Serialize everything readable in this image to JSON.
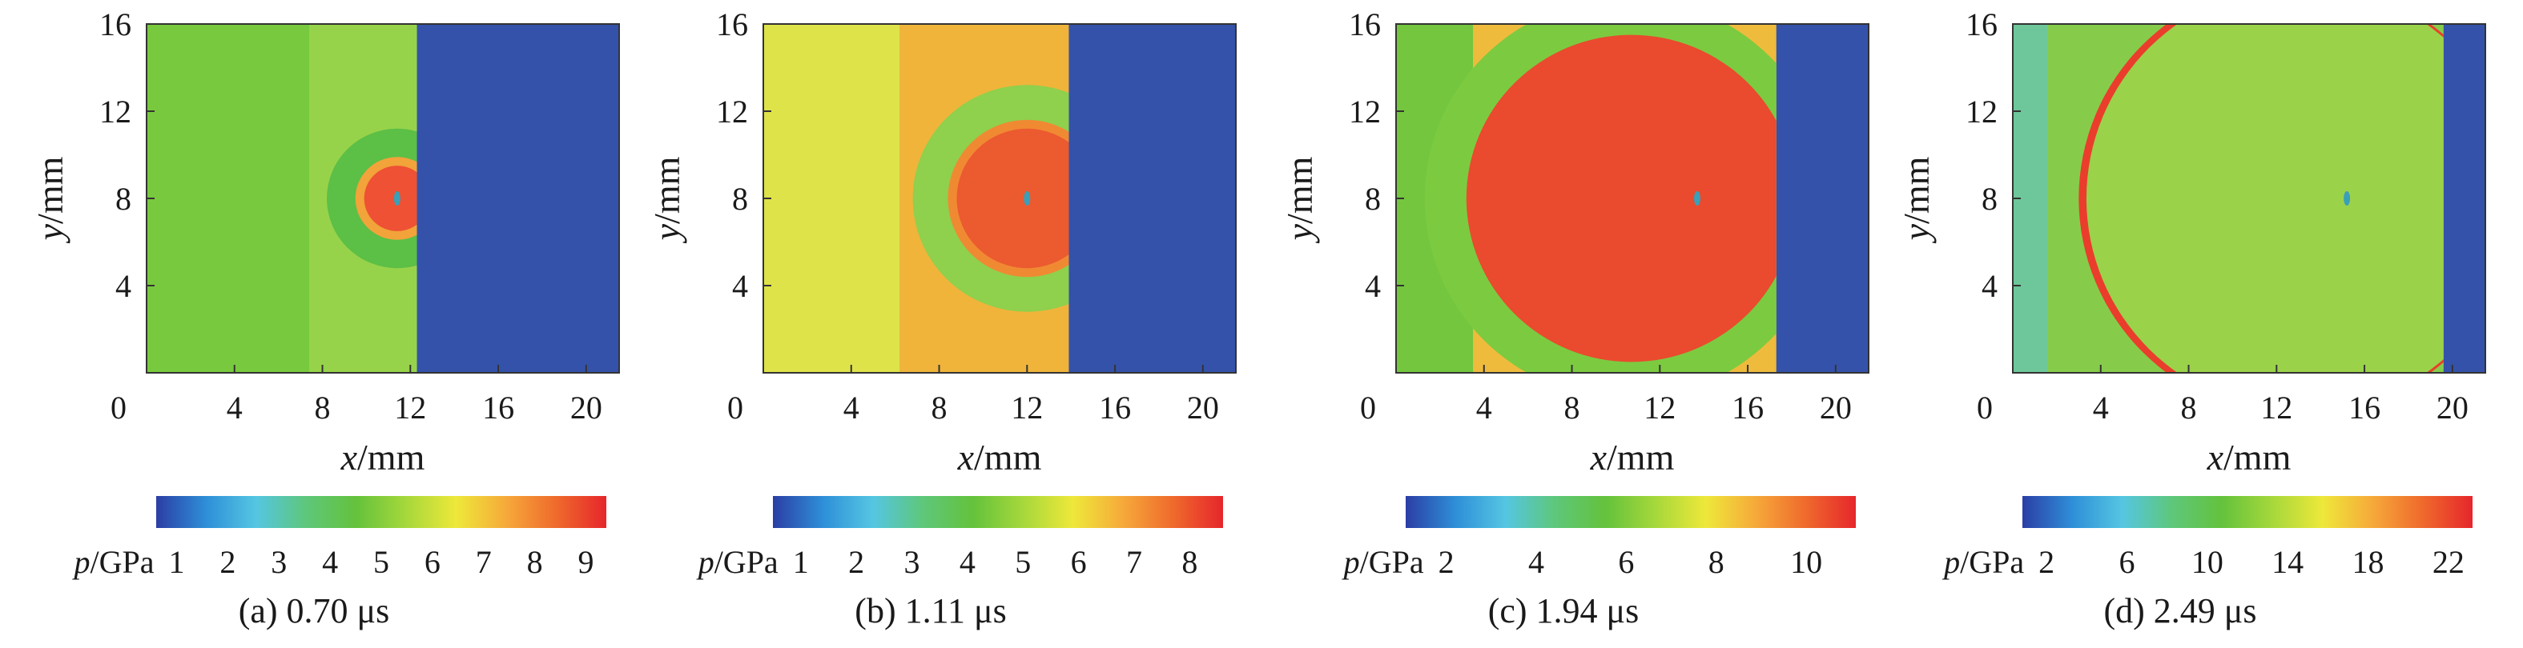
{
  "chart_data": [
    {
      "type": "heatmap",
      "caption": "(a) 0.70 μs",
      "xlabel": "x/mm",
      "ylabel": "y/mm",
      "xticks": [
        "0",
        "4",
        "8",
        "12",
        "16",
        "20"
      ],
      "yticks": [
        "4",
        "8",
        "12",
        "16"
      ],
      "xlim": [
        0,
        21.5
      ],
      "ylim": [
        0,
        16
      ],
      "colorbar": {
        "label": "p/GPa",
        "ticks": [
          "1",
          "2",
          "3",
          "4",
          "5",
          "6",
          "7",
          "8",
          "9"
        ],
        "range": [
          0.6,
          9.4
        ]
      },
      "regions": [
        {
          "kind": "band",
          "x": [
            0,
            7.4
          ],
          "color": "#78c93e"
        },
        {
          "kind": "band",
          "x": [
            7.4,
            12.3
          ],
          "color": "#97d34a"
        },
        {
          "kind": "band",
          "x": [
            12.3,
            21.5
          ],
          "color": "#3452a9"
        },
        {
          "kind": "circle",
          "cx": 11.4,
          "cy": 8,
          "r": 3.2,
          "color": "#5cbf46",
          "clip_x": 12.3
        },
        {
          "kind": "circle",
          "cx": 11.4,
          "cy": 8,
          "r": 1.9,
          "color": "#f2a33a",
          "clip_x": 12.3
        },
        {
          "kind": "circle",
          "cx": 11.4,
          "cy": 8,
          "r": 1.5,
          "color": "#ee5133",
          "clip_x": 12.3
        }
      ],
      "probe": {
        "x": 11.4,
        "y": 8
      }
    },
    {
      "type": "heatmap",
      "caption": "(b) 1.11 μs",
      "xlabel": "x/mm",
      "ylabel": "y/mm",
      "xticks": [
        "0",
        "4",
        "8",
        "12",
        "16",
        "20"
      ],
      "yticks": [
        "4",
        "8",
        "12",
        "16"
      ],
      "xlim": [
        0,
        21.5
      ],
      "ylim": [
        0,
        16
      ],
      "colorbar": {
        "label": "p/GPa",
        "ticks": [
          "1",
          "2",
          "3",
          "4",
          "5",
          "6",
          "7",
          "8"
        ],
        "range": [
          0.5,
          8.6
        ]
      },
      "regions": [
        {
          "kind": "band",
          "x": [
            0,
            6.2
          ],
          "color": "#dfe34a"
        },
        {
          "kind": "band",
          "x": [
            6.2,
            13.9
          ],
          "color": "#f0b43a"
        },
        {
          "kind": "band",
          "x": [
            13.9,
            21.5
          ],
          "color": "#3452a9"
        },
        {
          "kind": "circle",
          "cx": 12,
          "cy": 8,
          "r": 5.2,
          "color": "#8fd04c",
          "clip_x": 13.9
        },
        {
          "kind": "circle",
          "cx": 12,
          "cy": 8,
          "r": 3.6,
          "color": "#f08a32",
          "clip_x": 13.9
        },
        {
          "kind": "circle",
          "cx": 12,
          "cy": 8,
          "r": 3.2,
          "color": "#ec5a30",
          "clip_x": 13.9
        }
      ],
      "probe": {
        "x": 12,
        "y": 8
      }
    },
    {
      "type": "heatmap",
      "caption": "(c) 1.94 μs",
      "xlabel": "x/mm",
      "ylabel": "y/mm",
      "xticks": [
        "0",
        "4",
        "8",
        "12",
        "16",
        "20"
      ],
      "yticks": [
        "4",
        "8",
        "12",
        "16"
      ],
      "xlim": [
        0,
        21.5
      ],
      "ylim": [
        0,
        16
      ],
      "colorbar": {
        "label": "p/GPa",
        "ticks": [
          "2",
          "4",
          "6",
          "8",
          "10"
        ],
        "range": [
          1.1,
          11.1
        ]
      },
      "regions": [
        {
          "kind": "band",
          "x": [
            0,
            3.5
          ],
          "color": "#73c63e"
        },
        {
          "kind": "band",
          "x": [
            3.5,
            17.3
          ],
          "color": "#efbb3c"
        },
        {
          "kind": "band",
          "x": [
            17.3,
            21.5
          ],
          "color": "#3452a9"
        },
        {
          "kind": "circle",
          "cx": 10.5,
          "cy": 8,
          "r": 9.2,
          "color": "#7cca40",
          "clip_x": 17.3
        },
        {
          "kind": "circle",
          "cx": 10.7,
          "cy": 8,
          "r": 7.5,
          "color": "#ea4a2e",
          "clip_x": 17.3
        }
      ],
      "probe": {
        "x": 13.7,
        "y": 8
      }
    },
    {
      "type": "heatmap",
      "caption": "(d) 2.49 μs",
      "xlabel": "x/mm",
      "ylabel": "y/mm",
      "xticks": [
        "0",
        "4",
        "8",
        "12",
        "16",
        "20"
      ],
      "yticks": [
        "4",
        "8",
        "12",
        "16"
      ],
      "xlim": [
        0,
        21.5
      ],
      "ylim": [
        0,
        16
      ],
      "colorbar": {
        "label": "p/GPa",
        "ticks": [
          "2",
          "6",
          "10",
          "14",
          "18",
          "22"
        ],
        "range": [
          0.8,
          23.2
        ]
      },
      "regions": [
        {
          "kind": "band",
          "x": [
            0,
            1.6
          ],
          "color": "#6ec79a"
        },
        {
          "kind": "band",
          "x": [
            1.6,
            19.6
          ],
          "color": "#86cc4a"
        },
        {
          "kind": "band",
          "x": [
            19.6,
            21.5
          ],
          "color": "#3452a9"
        },
        {
          "kind": "circle",
          "cx": 13,
          "cy": 8,
          "r": 10,
          "color": "#ea3d2c",
          "clip_x": 19.6
        },
        {
          "kind": "circle",
          "cx": 13.15,
          "cy": 8,
          "r": 9.8,
          "color": "#9ad24a",
          "clip_x": 19.6
        }
      ],
      "probe": {
        "x": 15.2,
        "y": 8
      }
    }
  ],
  "colormap": [
    "#2b3ea5",
    "#2e8fd8",
    "#55c6e2",
    "#5ec77a",
    "#64c23c",
    "#a6d83b",
    "#eee83a",
    "#f6a93a",
    "#ef6a2c",
    "#e6262c"
  ]
}
